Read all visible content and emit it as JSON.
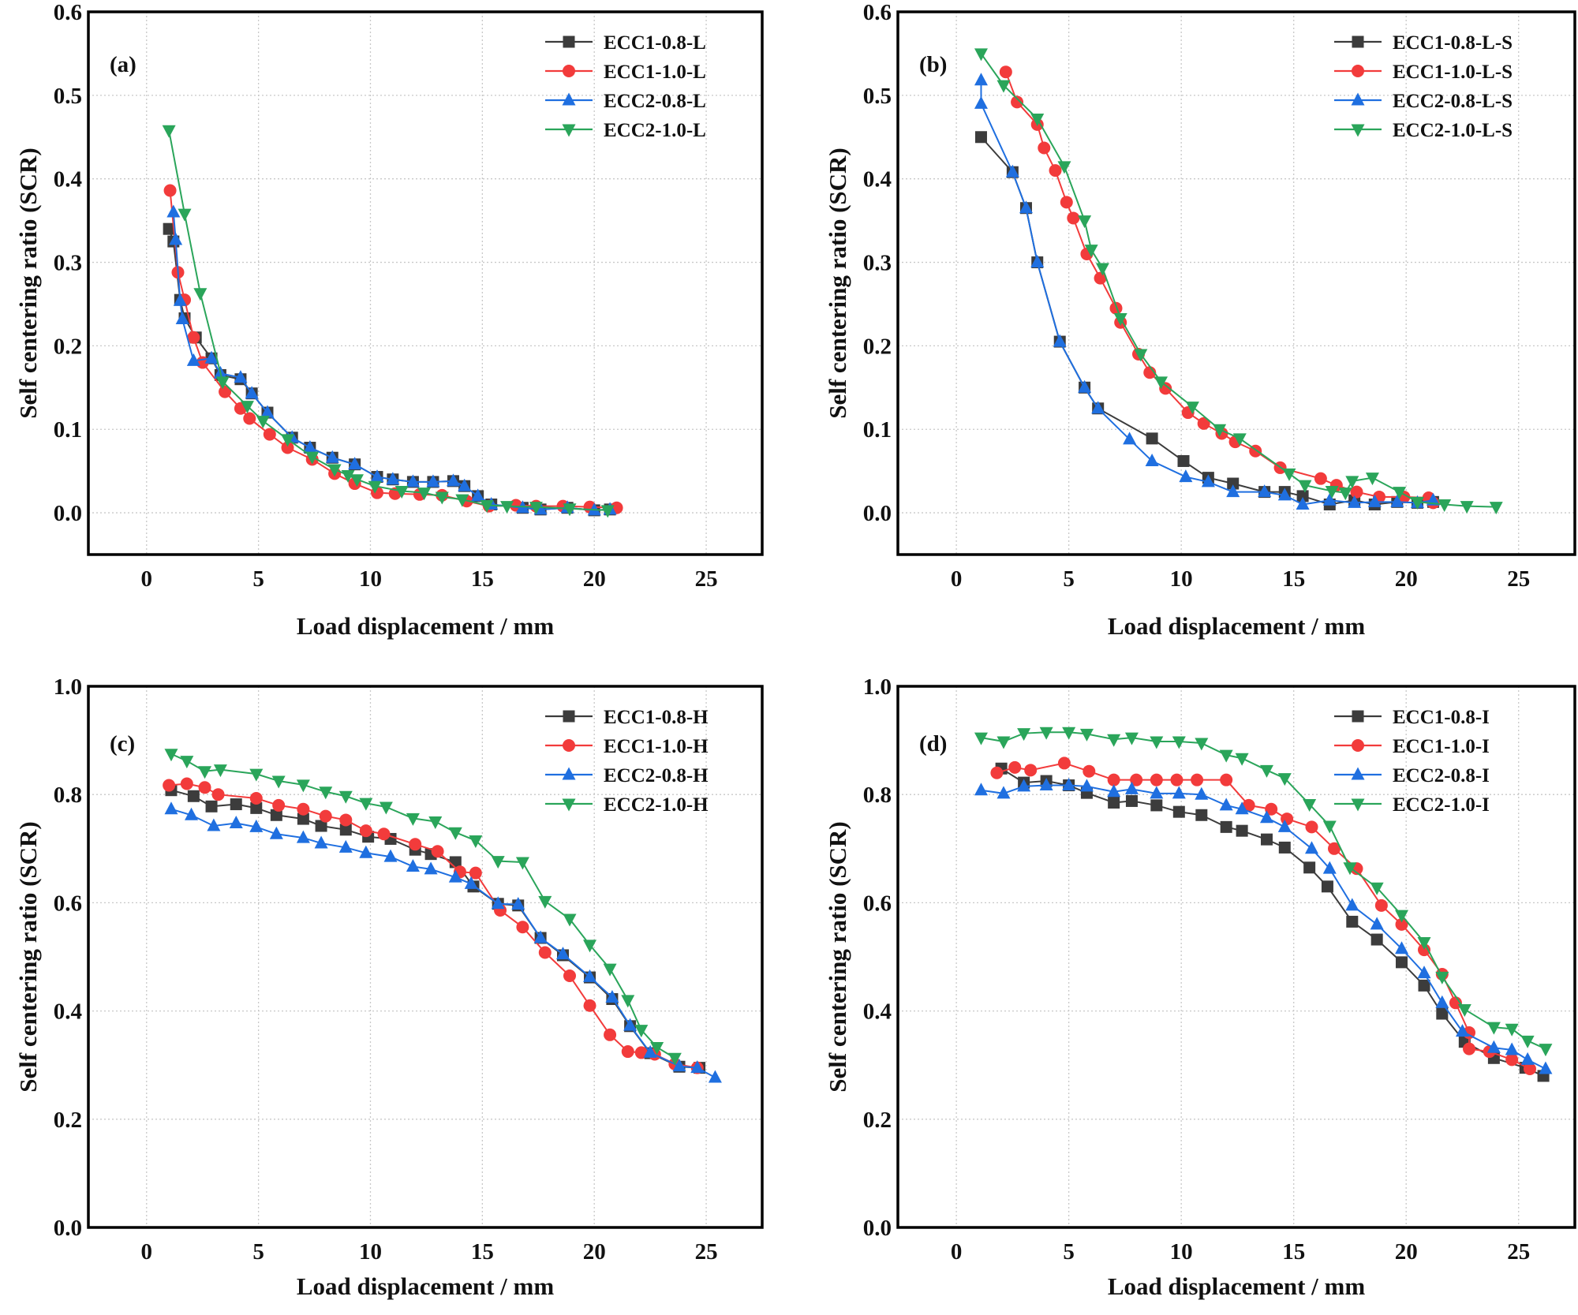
{
  "chart_data": [
    {
      "type": "line",
      "panel_label": "(a)",
      "xlabel": "Load displacement / mm",
      "ylabel": "Self centering ratio (SCR)",
      "xlim": [
        -2.6,
        27.5
      ],
      "ylim": [
        -0.05,
        0.6
      ],
      "xticks": [
        0,
        5,
        10,
        15,
        20,
        25
      ],
      "yticks": [
        0.0,
        0.1,
        0.2,
        0.3,
        0.4,
        0.5,
        0.6
      ],
      "grid": true,
      "legend": "top-right",
      "series": [
        {
          "name": "ECC1-0.8-L",
          "color": "#3c3c3c",
          "marker": "square",
          "x": [
            1.0,
            1.2,
            1.5,
            1.7,
            2.2,
            2.9,
            3.3,
            4.2,
            4.7,
            5.4,
            6.5,
            7.3,
            8.3,
            9.3,
            10.3,
            11.0,
            11.9,
            12.8,
            13.7,
            14.2,
            14.8,
            15.4,
            16.8,
            17.6,
            18.8,
            20.0,
            20.7
          ],
          "y": [
            0.34,
            0.325,
            0.255,
            0.233,
            0.21,
            0.185,
            0.165,
            0.16,
            0.143,
            0.12,
            0.09,
            0.078,
            0.066,
            0.058,
            0.043,
            0.04,
            0.037,
            0.037,
            0.038,
            0.032,
            0.02,
            0.01,
            0.006,
            0.004,
            0.006,
            0.003,
            0.004
          ]
        },
        {
          "name": "ECC1-1.0-L",
          "color": "#f23b3b",
          "marker": "circle",
          "x": [
            1.05,
            1.4,
            1.7,
            2.1,
            2.5,
            3.5,
            4.2,
            4.6,
            5.5,
            6.3,
            7.4,
            8.4,
            9.3,
            10.3,
            11.1,
            12.2,
            13.2,
            14.3,
            15.3,
            16.5,
            17.4,
            18.6,
            19.8,
            21.0
          ],
          "y": [
            0.386,
            0.288,
            0.255,
            0.21,
            0.18,
            0.145,
            0.125,
            0.113,
            0.094,
            0.078,
            0.064,
            0.047,
            0.035,
            0.024,
            0.023,
            0.022,
            0.021,
            0.014,
            0.008,
            0.009,
            0.008,
            0.008,
            0.007,
            0.006
          ]
        },
        {
          "name": "ECC2-0.8-L",
          "color": "#1f6fe0",
          "marker": "triangle-up",
          "x": [
            1.2,
            1.3,
            1.5,
            1.6,
            2.1,
            2.9,
            3.3,
            4.2,
            4.7,
            5.4,
            6.5,
            7.3,
            8.3,
            9.3,
            10.3,
            11.0,
            11.9,
            12.8,
            13.7,
            14.2,
            14.8,
            15.4,
            16.8,
            17.6,
            18.8,
            20.0,
            20.7
          ],
          "y": [
            0.36,
            0.327,
            0.254,
            0.232,
            0.182,
            0.185,
            0.167,
            0.162,
            0.143,
            0.12,
            0.09,
            0.078,
            0.066,
            0.058,
            0.043,
            0.04,
            0.037,
            0.037,
            0.038,
            0.032,
            0.02,
            0.01,
            0.006,
            0.004,
            0.006,
            0.003,
            0.004
          ]
        },
        {
          "name": "ECC2-1.0-L",
          "color": "#2aa55a",
          "marker": "triangle-down",
          "x": [
            1.0,
            1.7,
            2.4,
            3.4,
            4.5,
            5.2,
            6.3,
            7.4,
            8.4,
            9.0,
            9.4,
            10.2,
            11.4,
            12.4,
            13.2,
            14.1,
            15.2,
            16.1,
            17.4,
            18.9,
            20.6
          ],
          "y": [
            0.458,
            0.358,
            0.263,
            0.157,
            0.128,
            0.11,
            0.088,
            0.067,
            0.052,
            0.045,
            0.04,
            0.032,
            0.026,
            0.024,
            0.019,
            0.016,
            0.009,
            0.008,
            0.007,
            0.005,
            0.003
          ]
        }
      ]
    },
    {
      "type": "line",
      "panel_label": "(b)",
      "xlabel": "Load displacement / mm",
      "ylabel": "Self centering ratio (SCR)",
      "xlim": [
        -2.6,
        27.5
      ],
      "ylim": [
        -0.05,
        0.6
      ],
      "xticks": [
        0,
        5,
        10,
        15,
        20,
        25
      ],
      "yticks": [
        0.0,
        0.1,
        0.2,
        0.3,
        0.4,
        0.5,
        0.6
      ],
      "grid": true,
      "legend": "top-right",
      "series": [
        {
          "name": "ECC1-0.8-L-S",
          "color": "#3c3c3c",
          "marker": "square",
          "x": [
            1.1,
            2.5,
            3.1,
            3.6,
            4.6,
            5.7,
            6.3,
            8.7,
            10.1,
            11.2,
            12.3,
            13.7,
            14.6,
            15.4,
            16.6,
            17.7,
            18.6,
            19.6,
            20.5,
            21.2
          ],
          "y": [
            0.45,
            0.408,
            0.365,
            0.3,
            0.205,
            0.15,
            0.125,
            0.089,
            0.062,
            0.042,
            0.035,
            0.025,
            0.025,
            0.02,
            0.01,
            0.015,
            0.01,
            0.013,
            0.012,
            0.013
          ]
        },
        {
          "name": "ECC1-1.0-L-S",
          "color": "#f23b3b",
          "marker": "circle",
          "x": [
            2.2,
            2.7,
            3.6,
            3.9,
            4.4,
            4.9,
            5.2,
            5.8,
            6.4,
            7.1,
            7.3,
            8.1,
            8.6,
            9.3,
            10.3,
            11.0,
            11.8,
            12.4,
            13.3,
            14.4,
            16.2,
            16.9,
            17.8,
            18.8,
            19.9,
            21.0,
            21.2
          ],
          "y": [
            0.528,
            0.492,
            0.465,
            0.437,
            0.41,
            0.372,
            0.353,
            0.31,
            0.281,
            0.245,
            0.228,
            0.19,
            0.168,
            0.149,
            0.12,
            0.107,
            0.095,
            0.085,
            0.074,
            0.054,
            0.041,
            0.033,
            0.025,
            0.019,
            0.019,
            0.018,
            0.012
          ]
        },
        {
          "name": "ECC2-0.8-L-S",
          "color": "#1f6fe0",
          "marker": "triangle-up",
          "x": [
            1.1,
            1.1,
            2.5,
            3.1,
            3.6,
            4.6,
            5.7,
            6.3,
            7.7,
            8.7,
            10.2,
            11.2,
            12.3,
            13.7,
            14.6,
            15.4,
            16.6,
            17.7,
            18.6,
            19.6,
            20.5,
            21.2
          ],
          "y": [
            0.518,
            0.49,
            0.408,
            0.365,
            0.3,
            0.205,
            0.15,
            0.125,
            0.088,
            0.062,
            0.043,
            0.037,
            0.025,
            0.025,
            0.021,
            0.01,
            0.015,
            0.012,
            0.013,
            0.013,
            0.012,
            0.015
          ]
        },
        {
          "name": "ECC2-1.0-L-S",
          "color": "#2aa55a",
          "marker": "triangle-down",
          "x": [
            1.1,
            2.1,
            3.6,
            4.8,
            5.7,
            6.0,
            6.5,
            7.3,
            8.2,
            9.1,
            10.5,
            11.7,
            12.6,
            14.8,
            15.5,
            16.7,
            17.3,
            17.6,
            18.5,
            19.7,
            20.5,
            21.7,
            22.7,
            24.0
          ],
          "y": [
            0.55,
            0.512,
            0.472,
            0.415,
            0.35,
            0.315,
            0.293,
            0.233,
            0.19,
            0.157,
            0.127,
            0.1,
            0.089,
            0.047,
            0.033,
            0.026,
            0.024,
            0.038,
            0.042,
            0.025,
            0.013,
            0.01,
            0.008,
            0.007
          ]
        }
      ]
    },
    {
      "type": "line",
      "panel_label": "(c)",
      "xlabel": "Load displacement / mm",
      "ylabel": "Self centering ratio (SCR)",
      "xlim": [
        -2.6,
        27.5
      ],
      "ylim": [
        0.0,
        1.0
      ],
      "xticks": [
        0,
        5,
        10,
        15,
        20,
        25
      ],
      "yticks": [
        0.0,
        0.2,
        0.4,
        0.6,
        0.8,
        1.0
      ],
      "grid": true,
      "legend": "top-right",
      "series": [
        {
          "name": "ECC1-0.8-H",
          "color": "#3c3c3c",
          "marker": "square",
          "x": [
            1.1,
            2.1,
            2.9,
            4.0,
            4.9,
            5.8,
            7.0,
            7.8,
            8.9,
            9.9,
            10.9,
            12.0,
            12.7,
            13.8,
            14.6,
            15.7,
            16.6,
            17.6,
            18.6,
            19.8,
            20.8,
            21.6,
            22.5,
            23.8,
            24.7
          ],
          "y": [
            0.808,
            0.797,
            0.778,
            0.782,
            0.775,
            0.762,
            0.755,
            0.742,
            0.735,
            0.722,
            0.718,
            0.698,
            0.69,
            0.675,
            0.63,
            0.598,
            0.595,
            0.535,
            0.503,
            0.462,
            0.422,
            0.372,
            0.322,
            0.297,
            0.295
          ]
        },
        {
          "name": "ECC1-1.0-H",
          "color": "#f23b3b",
          "marker": "circle",
          "x": [
            1.0,
            1.8,
            2.6,
            3.2,
            4.9,
            5.9,
            7.0,
            8.0,
            8.9,
            9.8,
            10.6,
            12.0,
            13.0,
            14.0,
            14.7,
            15.8,
            16.8,
            17.8,
            18.9,
            19.8,
            20.7,
            21.5,
            22.1,
            22.7,
            23.6,
            24.6
          ],
          "y": [
            0.817,
            0.82,
            0.813,
            0.8,
            0.793,
            0.78,
            0.773,
            0.76,
            0.753,
            0.733,
            0.727,
            0.708,
            0.695,
            0.657,
            0.655,
            0.586,
            0.555,
            0.508,
            0.465,
            0.41,
            0.356,
            0.325,
            0.323,
            0.32,
            0.302,
            0.295
          ]
        },
        {
          "name": "ECC2-0.8-H",
          "color": "#1f6fe0",
          "marker": "triangle-up",
          "x": [
            1.1,
            2.0,
            3.0,
            4.0,
            4.9,
            5.8,
            7.0,
            7.8,
            8.9,
            9.8,
            10.9,
            11.9,
            12.7,
            13.8,
            14.5,
            15.7,
            16.6,
            17.6,
            18.6,
            19.8,
            20.8,
            21.6,
            22.5,
            23.8,
            24.6,
            25.4
          ],
          "y": [
            0.773,
            0.762,
            0.742,
            0.747,
            0.74,
            0.727,
            0.72,
            0.71,
            0.702,
            0.692,
            0.685,
            0.667,
            0.662,
            0.647,
            0.635,
            0.598,
            0.597,
            0.535,
            0.505,
            0.463,
            0.425,
            0.373,
            0.323,
            0.298,
            0.295,
            0.277
          ]
        },
        {
          "name": "ECC2-1.0-H",
          "color": "#2aa55a",
          "marker": "triangle-down",
          "x": [
            1.1,
            1.8,
            2.6,
            3.3,
            4.9,
            5.9,
            7.0,
            8.0,
            8.9,
            9.8,
            10.7,
            11.9,
            12.9,
            13.8,
            14.7,
            15.7,
            16.8,
            17.8,
            18.9,
            19.8,
            20.7,
            21.5,
            22.1,
            22.8,
            23.6
          ],
          "y": [
            0.875,
            0.862,
            0.843,
            0.846,
            0.838,
            0.825,
            0.818,
            0.805,
            0.797,
            0.784,
            0.777,
            0.756,
            0.75,
            0.73,
            0.715,
            0.677,
            0.675,
            0.603,
            0.57,
            0.522,
            0.478,
            0.42,
            0.365,
            0.333,
            0.313
          ]
        }
      ]
    },
    {
      "type": "line",
      "panel_label": "(d)",
      "xlabel": "Load displacement / mm",
      "ylabel": "Self centering ratio (SCR)",
      "xlim": [
        -2.6,
        27.5
      ],
      "ylim": [
        0.0,
        1.0
      ],
      "xticks": [
        0,
        5,
        10,
        15,
        20,
        25
      ],
      "yticks": [
        0.0,
        0.2,
        0.4,
        0.6,
        0.8,
        1.0
      ],
      "grid": true,
      "legend": "top-right",
      "series": [
        {
          "name": "ECC1-0.8-I",
          "color": "#3c3c3c",
          "marker": "square",
          "x": [
            2.0,
            3.0,
            4.0,
            5.0,
            5.8,
            7.0,
            7.8,
            8.9,
            9.9,
            10.9,
            12.0,
            12.7,
            13.8,
            14.6,
            15.7,
            16.5,
            17.6,
            18.7,
            19.8,
            20.8,
            21.6,
            22.6,
            23.9,
            25.3,
            26.1
          ],
          "y": [
            0.848,
            0.822,
            0.825,
            0.817,
            0.803,
            0.785,
            0.788,
            0.78,
            0.768,
            0.762,
            0.74,
            0.733,
            0.717,
            0.702,
            0.665,
            0.63,
            0.565,
            0.532,
            0.49,
            0.447,
            0.395,
            0.343,
            0.313,
            0.295,
            0.28
          ]
        },
        {
          "name": "ECC1-1.0-I",
          "color": "#f23b3b",
          "marker": "circle",
          "x": [
            1.8,
            2.6,
            3.3,
            4.8,
            5.9,
            7.0,
            8.0,
            8.9,
            9.8,
            10.7,
            12.0,
            13.0,
            14.0,
            14.7,
            15.8,
            16.8,
            17.8,
            18.9,
            19.8,
            20.8,
            21.6,
            22.2,
            22.8,
            22.8,
            23.7,
            24.7,
            25.5
          ],
          "y": [
            0.84,
            0.85,
            0.845,
            0.858,
            0.843,
            0.827,
            0.827,
            0.827,
            0.827,
            0.827,
            0.827,
            0.78,
            0.773,
            0.755,
            0.74,
            0.7,
            0.663,
            0.595,
            0.56,
            0.513,
            0.468,
            0.415,
            0.36,
            0.33,
            0.325,
            0.31,
            0.293
          ]
        },
        {
          "name": "ECC2-0.8-I",
          "color": "#1f6fe0",
          "marker": "triangle-up",
          "x": [
            1.1,
            2.1,
            3.0,
            4.0,
            5.0,
            5.8,
            7.0,
            7.8,
            8.9,
            9.9,
            10.9,
            12.0,
            12.7,
            13.8,
            14.6,
            15.8,
            16.6,
            17.6,
            18.7,
            19.8,
            20.8,
            21.6,
            22.5,
            23.9,
            24.7,
            25.4,
            26.2
          ],
          "y": [
            0.808,
            0.802,
            0.815,
            0.817,
            0.817,
            0.815,
            0.805,
            0.81,
            0.802,
            0.802,
            0.8,
            0.78,
            0.773,
            0.757,
            0.74,
            0.7,
            0.663,
            0.595,
            0.56,
            0.515,
            0.47,
            0.415,
            0.362,
            0.332,
            0.328,
            0.31,
            0.293
          ]
        },
        {
          "name": "ECC2-1.0-I",
          "color": "#2aa55a",
          "marker": "triangle-down",
          "x": [
            1.1,
            2.1,
            3.0,
            4.0,
            5.0,
            5.8,
            7.0,
            7.8,
            8.9,
            9.9,
            10.9,
            12.0,
            12.7,
            13.8,
            14.6,
            15.7,
            16.6,
            17.5,
            18.7,
            19.8,
            20.8,
            21.6,
            22.6,
            23.9,
            24.7,
            25.4,
            26.2
          ],
          "y": [
            0.905,
            0.898,
            0.913,
            0.915,
            0.915,
            0.912,
            0.902,
            0.905,
            0.898,
            0.898,
            0.895,
            0.873,
            0.867,
            0.845,
            0.83,
            0.782,
            0.742,
            0.665,
            0.628,
            0.577,
            0.527,
            0.463,
            0.403,
            0.37,
            0.367,
            0.345,
            0.33
          ]
        }
      ]
    }
  ]
}
